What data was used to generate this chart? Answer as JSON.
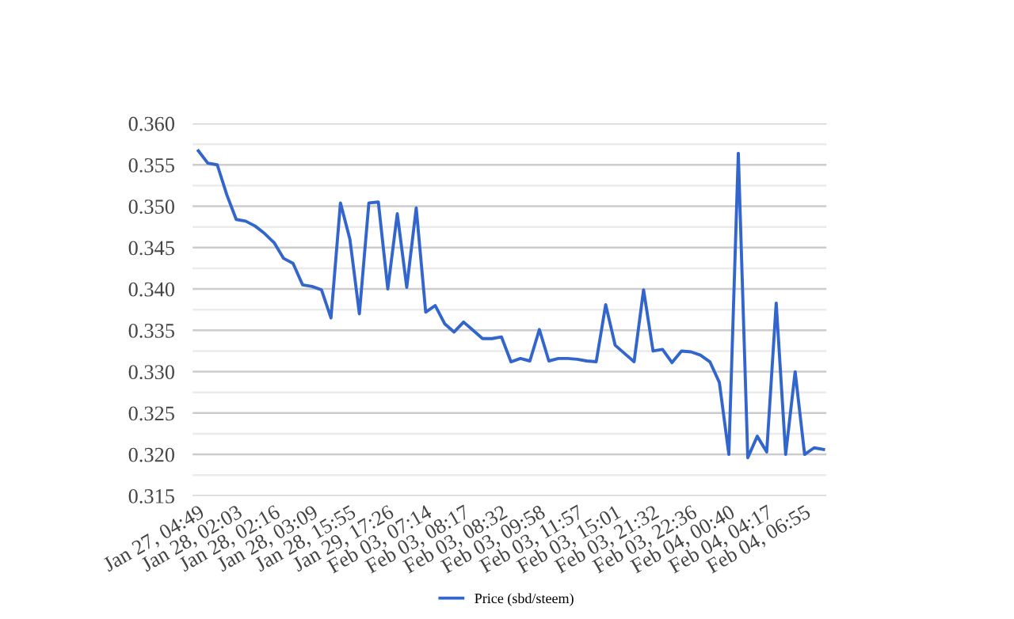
{
  "chart_data": {
    "type": "line",
    "categories": [
      "Jan 27, 04:49",
      null,
      null,
      null,
      "Jan 28, 02:03",
      null,
      null,
      null,
      "Jan 28, 02:16",
      null,
      null,
      null,
      "Jan 28, 03:09",
      null,
      null,
      null,
      "Jan 28, 15:55",
      null,
      null,
      null,
      "Jan 29, 17:26",
      null,
      null,
      null,
      "Feb 03, 07:14",
      null,
      null,
      null,
      "Feb 03, 08:17",
      null,
      null,
      null,
      "Feb 03, 08:32",
      null,
      null,
      null,
      "Feb 03, 09:58",
      null,
      null,
      null,
      "Feb 03, 11:57",
      null,
      null,
      null,
      "Feb 03, 15:01",
      null,
      null,
      null,
      "Feb 03, 21:32",
      null,
      null,
      null,
      "Feb 03, 22:36",
      null,
      null,
      null,
      "Feb 04, 00:40",
      null,
      null,
      null,
      "Feb 04, 04:17",
      null,
      null,
      null,
      "Feb 04, 06:55",
      null,
      null
    ],
    "series": [
      {
        "name": "Price (sbd/steem)",
        "color": "#3366cc",
        "values": [
          0.3567,
          0.3552,
          0.355,
          0.3514,
          0.3484,
          0.3482,
          0.3476,
          0.3467,
          0.3456,
          0.3437,
          0.3431,
          0.3405,
          0.3403,
          0.3399,
          0.3365,
          0.3504,
          0.346,
          0.337,
          0.3504,
          0.3505,
          0.34,
          0.3491,
          0.3402,
          0.3498,
          0.3372,
          0.338,
          0.3358,
          0.3348,
          0.336,
          0.335,
          0.334,
          0.334,
          0.3342,
          0.3312,
          0.3316,
          0.3313,
          0.3351,
          0.3313,
          0.3316,
          0.3316,
          0.3315,
          0.3313,
          0.3312,
          0.3381,
          0.3332,
          0.3322,
          0.3312,
          0.3399,
          0.3325,
          0.3327,
          0.3311,
          0.3325,
          0.3324,
          0.332,
          0.3312,
          0.3287,
          0.32,
          0.3564,
          0.3196,
          0.3222,
          0.3203,
          0.3383,
          0.32,
          0.33,
          0.32,
          0.3208,
          0.3206
        ]
      }
    ],
    "ylim": [
      0.315,
      0.36
    ],
    "yticks": [
      {
        "value": 0.315,
        "label": "0.315"
      },
      {
        "value": 0.3175,
        "label": null
      },
      {
        "value": 0.32,
        "label": "0.320"
      },
      {
        "value": 0.3225,
        "label": null
      },
      {
        "value": 0.325,
        "label": "0.325"
      },
      {
        "value": 0.3275,
        "label": null
      },
      {
        "value": 0.33,
        "label": "0.330"
      },
      {
        "value": 0.3325,
        "label": null
      },
      {
        "value": 0.335,
        "label": "0.335"
      },
      {
        "value": 0.3375,
        "label": null
      },
      {
        "value": 0.34,
        "label": "0.340"
      },
      {
        "value": 0.3425,
        "label": null
      },
      {
        "value": 0.345,
        "label": "0.345"
      },
      {
        "value": 0.3475,
        "label": null
      },
      {
        "value": 0.35,
        "label": "0.350"
      },
      {
        "value": 0.3525,
        "label": null
      },
      {
        "value": 0.355,
        "label": "0.355"
      },
      {
        "value": 0.3575,
        "label": null
      },
      {
        "value": 0.36,
        "label": "0.360"
      }
    ],
    "grid": "y",
    "legend": "bottom",
    "marker": "none",
    "line_style": "solid"
  }
}
